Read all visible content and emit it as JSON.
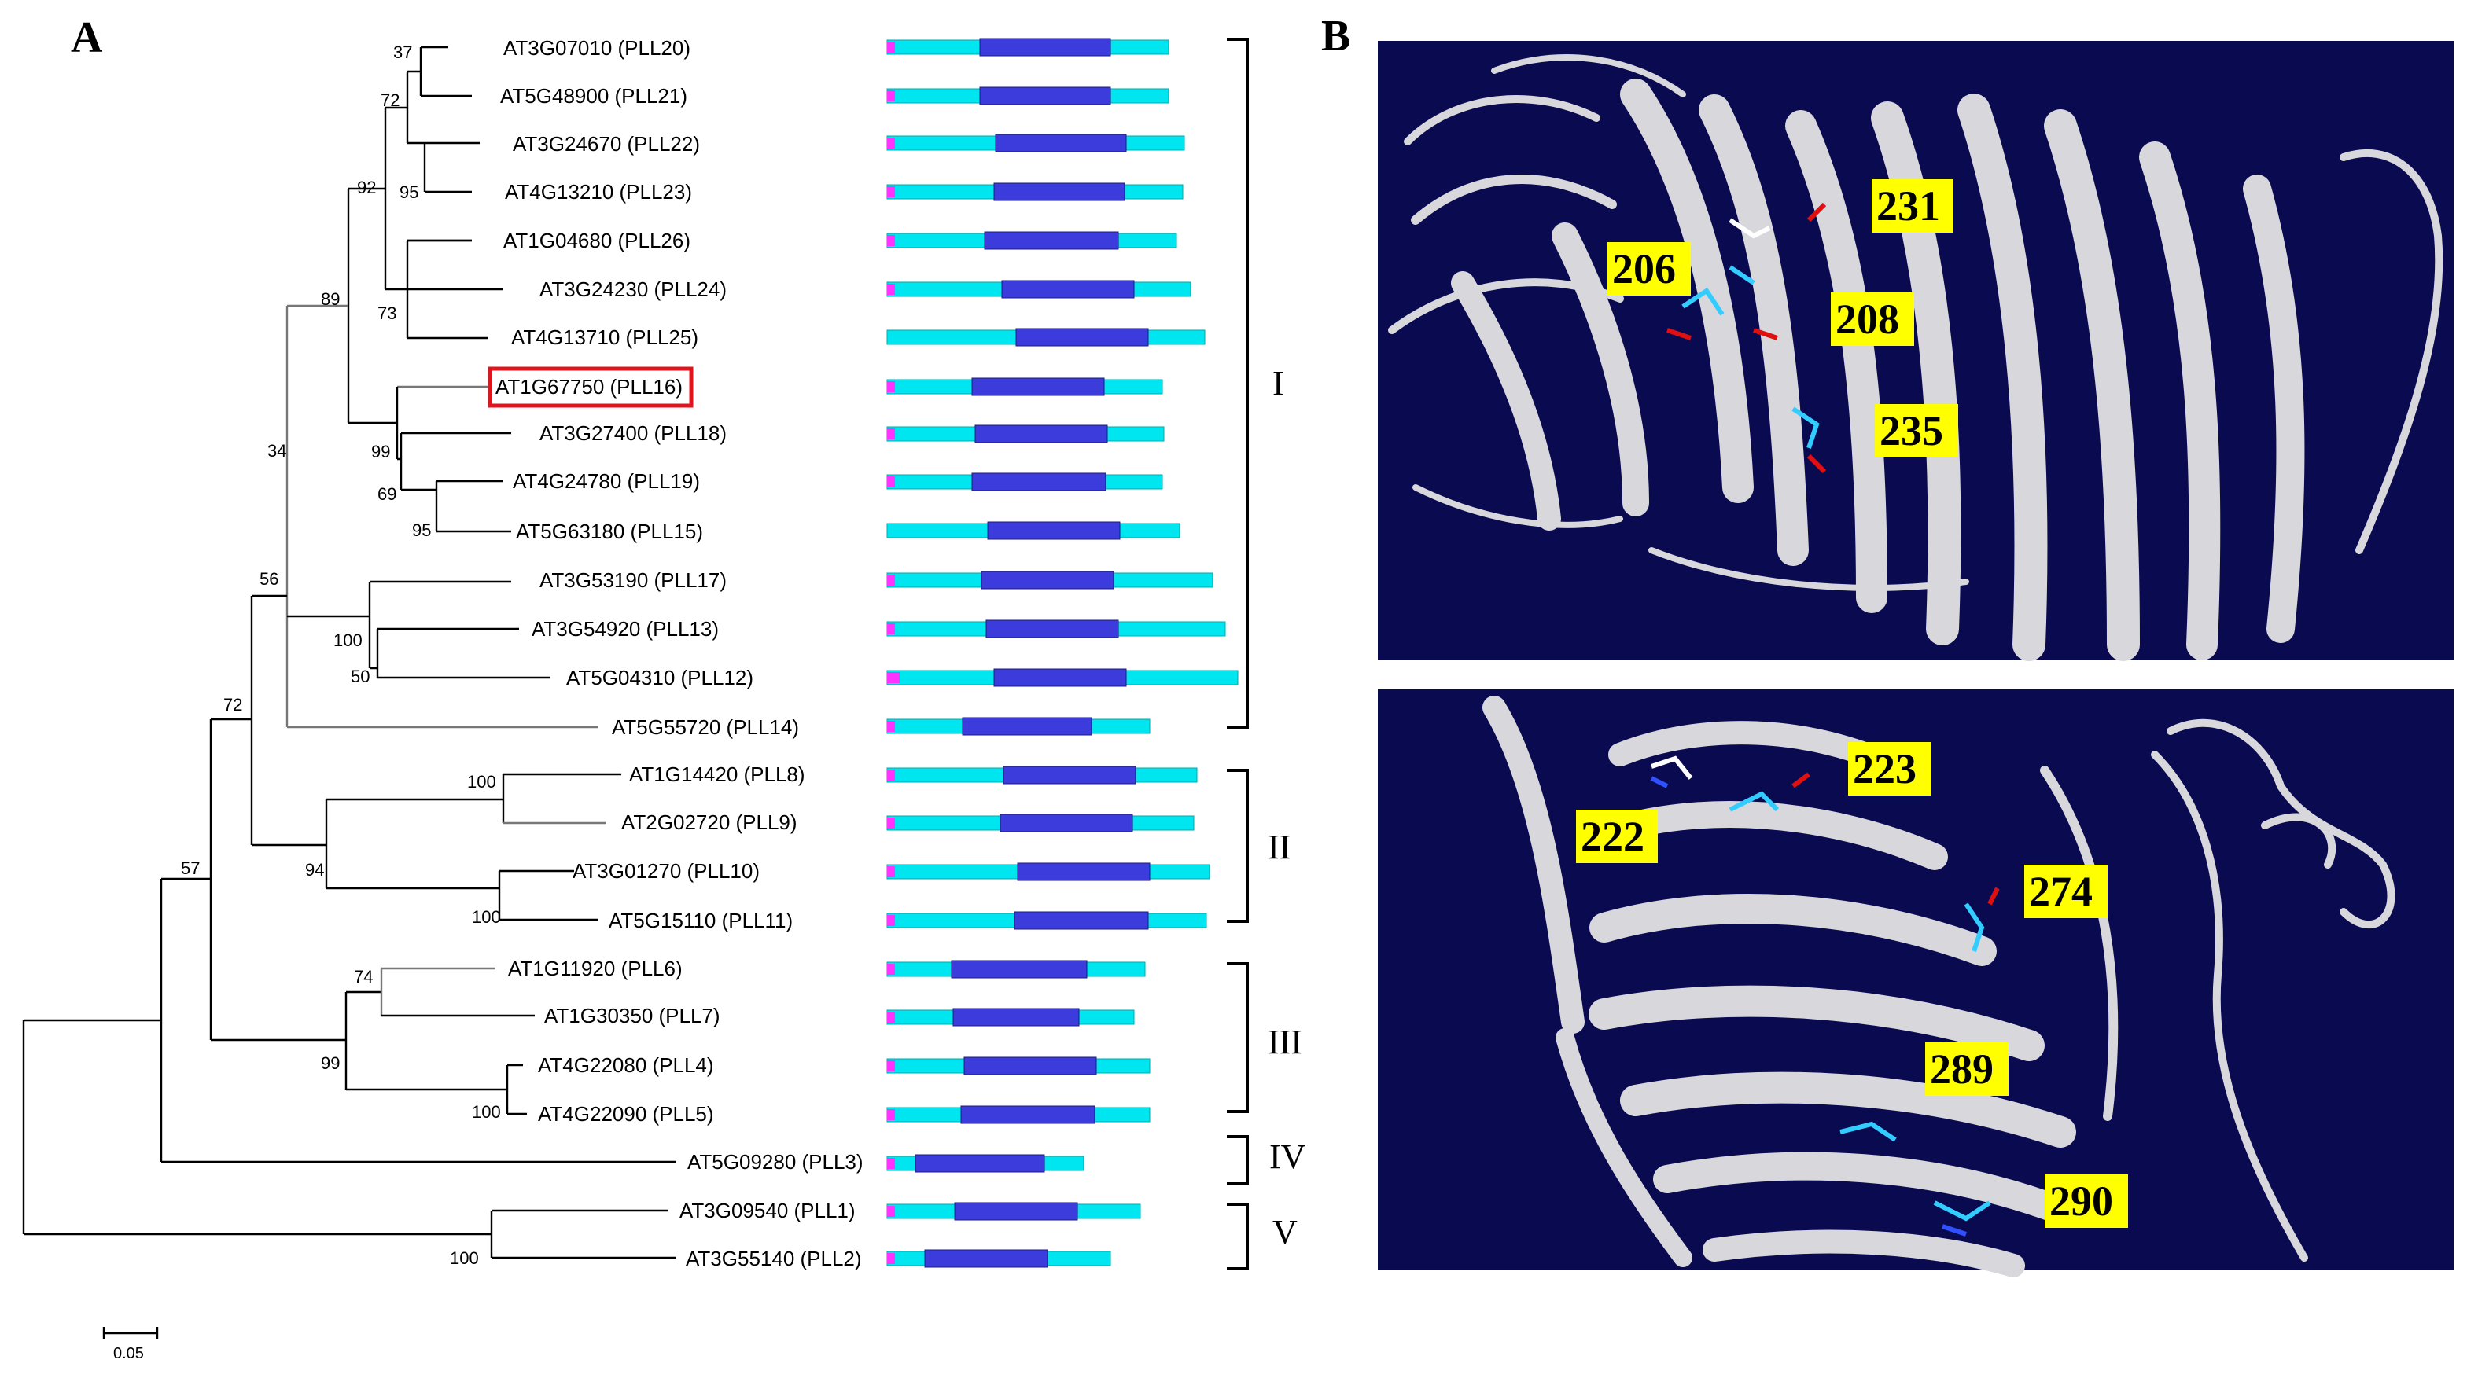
{
  "panel_a": {
    "label": "A",
    "leaves": [
      "AT3G07010 (PLL20)",
      "AT5G48900 (PLL21)",
      "AT3G24670 (PLL22)",
      "AT4G13210 (PLL23)",
      "AT1G04680 (PLL26)",
      "AT3G24230 (PLL24)",
      "AT4G13710 (PLL25)",
      "AT1G67750 (PLL16)",
      "AT3G27400 (PLL18)",
      "AT4G24780 (PLL19)",
      "AT5G63180 (PLL15)",
      "AT3G53190 (PLL17)",
      "AT3G54920 (PLL13)",
      "AT5G04310 (PLL12)",
      "AT5G55720 (PLL14)",
      "AT1G14420 (PLL8)",
      "AT2G02720 (PLL9)",
      "AT3G01270 (PLL10)",
      "AT5G15110 (PLL11)",
      "AT1G11920 (PLL6)",
      "AT1G30350 (PLL7)",
      "AT4G22080 (PLL4)",
      "AT4G22090 (PLL5)",
      "AT5G09280 (PLL3)",
      "AT3G09540 (PLL1)",
      "AT3G55140 (PLL2)"
    ],
    "highlighted_leaf": "AT1G67750 (PLL16)",
    "bootstrap": [
      "37",
      "72",
      "95",
      "92",
      "73",
      "89",
      "99",
      "69",
      "95",
      "34",
      "56",
      "100",
      "50",
      "72",
      "100",
      "94",
      "100",
      "57",
      "74",
      "99",
      "100",
      "100"
    ],
    "clades": [
      "I",
      "II",
      "III",
      "IV",
      "V"
    ],
    "scale_label": "0.05",
    "colors": {
      "highlight_box": "#e0141c",
      "signal": "#ff33ff",
      "protein": "#00e6f0",
      "domain": "#3c3cdc"
    }
  },
  "panel_b": {
    "label": "B",
    "top_residues": [
      "231",
      "206",
      "208",
      "235"
    ],
    "bottom_residues": [
      "223",
      "222",
      "274",
      "289",
      "290"
    ],
    "colors": {
      "background": "#0a0a50",
      "label_bg": "#ffff00",
      "ribbon": "#d7d7dc"
    }
  }
}
